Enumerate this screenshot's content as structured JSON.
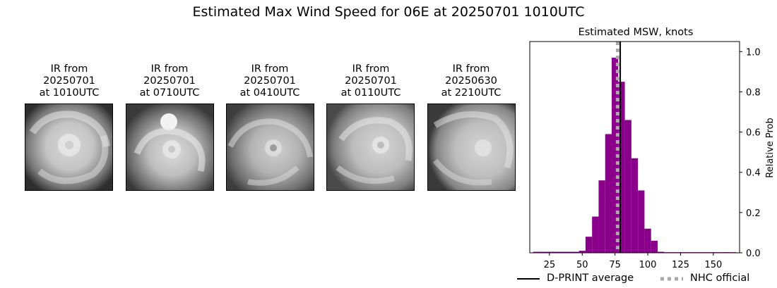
{
  "suptitle": "Estimated Max Wind Speed for 06E at 20250701 1010UTC",
  "panels": [
    {
      "line1": "IR from",
      "line2": "20250701",
      "line3": "at 1010UTC"
    },
    {
      "line1": "IR from",
      "line2": "20250701",
      "line3": "at 0710UTC"
    },
    {
      "line1": "IR from",
      "line2": "20250701",
      "line3": "at 0410UTC"
    },
    {
      "line1": "IR from",
      "line2": "20250701",
      "line3": "at 0110UTC"
    },
    {
      "line1": "IR from",
      "line2": "20250630",
      "line3": "at 2210UTC"
    }
  ],
  "chart_data": {
    "type": "bar",
    "title": "Estimated MSW, knots",
    "xlabel": "",
    "ylabel": "Relative Prob",
    "xlim": [
      10,
      170
    ],
    "ylim": [
      0,
      1.05
    ],
    "xticks": [
      25,
      50,
      75,
      100,
      125,
      150
    ],
    "yticks": [
      0.0,
      0.2,
      0.4,
      0.6,
      0.8,
      1.0
    ],
    "y_axis_side": "right",
    "bar_color": "#8b008b",
    "bin_width": 5,
    "bins": [
      {
        "x": 15,
        "value": 0.005
      },
      {
        "x": 20,
        "value": 0.005
      },
      {
        "x": 25,
        "value": 0.005
      },
      {
        "x": 30,
        "value": 0.005
      },
      {
        "x": 35,
        "value": 0.005
      },
      {
        "x": 40,
        "value": 0.005
      },
      {
        "x": 45,
        "value": 0.005
      },
      {
        "x": 50,
        "value": 0.01
      },
      {
        "x": 55,
        "value": 0.08
      },
      {
        "x": 60,
        "value": 0.18
      },
      {
        "x": 65,
        "value": 0.36
      },
      {
        "x": 70,
        "value": 0.59
      },
      {
        "x": 75,
        "value": 0.97
      },
      {
        "x": 80,
        "value": 0.85
      },
      {
        "x": 85,
        "value": 0.66
      },
      {
        "x": 90,
        "value": 0.47
      },
      {
        "x": 95,
        "value": 0.31
      },
      {
        "x": 100,
        "value": 0.12
      },
      {
        "x": 105,
        "value": 0.06
      },
      {
        "x": 110,
        "value": 0.005
      },
      {
        "x": 115,
        "value": 0.003
      },
      {
        "x": 120,
        "value": 0.003
      },
      {
        "x": 125,
        "value": 0.003
      },
      {
        "x": 130,
        "value": 0.003
      },
      {
        "x": 135,
        "value": 0.003
      },
      {
        "x": 140,
        "value": 0.003
      },
      {
        "x": 145,
        "value": 0.003
      },
      {
        "x": 150,
        "value": 0.003
      },
      {
        "x": 155,
        "value": 0.003
      },
      {
        "x": 160,
        "value": 0.003
      },
      {
        "x": 165,
        "value": 0.003
      }
    ],
    "dprint_average": 79,
    "nhc_official": 77,
    "legend": [
      {
        "label": "D-PRINT average",
        "color": "#000000",
        "style": "solid"
      },
      {
        "label": "NHC official",
        "color": "#a9a9a9",
        "style": "dotted"
      }
    ],
    "legend_placement": "bottom"
  }
}
